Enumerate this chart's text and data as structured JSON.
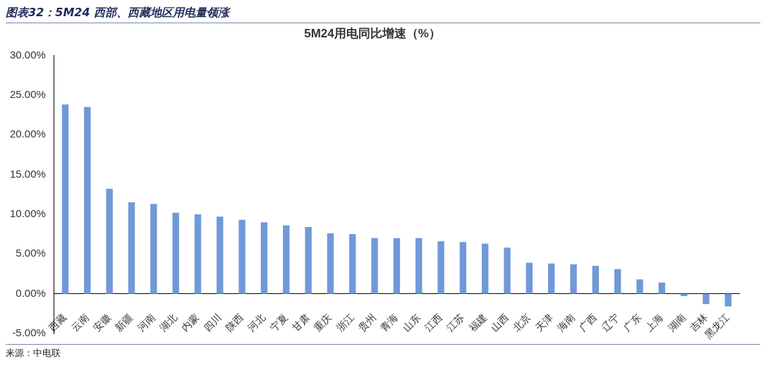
{
  "chart_data": {
    "type": "bar",
    "title": "图表32：5M24 西部、西藏地区用电量领涨",
    "subtitle": "5M24用电同比增速（%）",
    "categories": [
      "西藏",
      "云南",
      "安徽",
      "新疆",
      "河南",
      "湖北",
      "内蒙",
      "四川",
      "陕西",
      "河北",
      "宁夏",
      "甘肃",
      "重庆",
      "浙江",
      "贵州",
      "青海",
      "山东",
      "江西",
      "江苏",
      "福建",
      "山西",
      "北京",
      "天津",
      "海南",
      "广西",
      "辽宁",
      "广东",
      "上海",
      "湖南",
      "吉林",
      "黑龙江"
    ],
    "values": [
      23.8,
      23.5,
      13.2,
      11.5,
      11.3,
      10.2,
      10.0,
      9.7,
      9.3,
      9.0,
      8.6,
      8.4,
      7.6,
      7.5,
      7.0,
      7.0,
      7.0,
      6.6,
      6.5,
      6.3,
      5.8,
      3.9,
      3.8,
      3.7,
      3.5,
      3.1,
      1.8,
      1.4,
      -0.3,
      -1.3,
      -1.6
    ],
    "color": "#7099d8",
    "ylim": [
      -5,
      30
    ],
    "yticks": [
      {
        "value": -5,
        "label": "-5.00%"
      },
      {
        "value": 0,
        "label": "0.00%"
      },
      {
        "value": 5,
        "label": "5.00%"
      },
      {
        "value": 10,
        "label": "10.00%"
      },
      {
        "value": 15,
        "label": "15.00%"
      },
      {
        "value": 20,
        "label": "20.00%"
      },
      {
        "value": 25,
        "label": "25.00%"
      },
      {
        "value": 30,
        "label": "30.00%"
      }
    ],
    "grid": false,
    "legend": false,
    "annotations": [
      "来源：中电联"
    ]
  }
}
